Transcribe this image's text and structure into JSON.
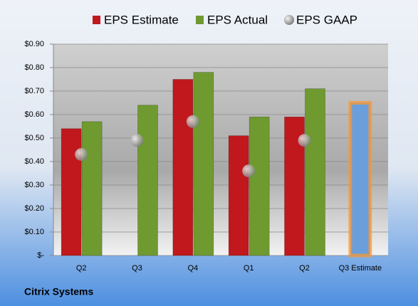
{
  "chart_data": {
    "type": "bar",
    "title": "Citrix Systems",
    "categories": [
      "Q2",
      "Q3",
      "Q4",
      "Q1",
      "Q2",
      "Q3 Estimate"
    ],
    "series": [
      {
        "name": "EPS Estimate",
        "color": "#c0181c",
        "values": [
          0.54,
          null,
          0.75,
          0.51,
          0.59,
          0.65
        ]
      },
      {
        "name": "EPS Actual",
        "color": "#6f9a2f",
        "values": [
          0.57,
          0.64,
          0.78,
          0.59,
          0.71,
          null
        ]
      },
      {
        "name": "EPS GAAP",
        "color": "#9a9a9a",
        "values": [
          0.43,
          0.49,
          0.57,
          0.36,
          0.49,
          null
        ]
      }
    ],
    "estimate_highlight_color": "#6b9fdc",
    "ylim": [
      0,
      0.9
    ],
    "yticks": [
      {
        "value": 0,
        "label": "$-"
      },
      {
        "value": 0.1,
        "label": "$0.10"
      },
      {
        "value": 0.2,
        "label": "$0.20"
      },
      {
        "value": 0.3,
        "label": "$0.30"
      },
      {
        "value": 0.4,
        "label": "$0.40"
      },
      {
        "value": 0.5,
        "label": "$0.50"
      },
      {
        "value": 0.6,
        "label": "$0.60"
      },
      {
        "value": 0.7,
        "label": "$0.70"
      },
      {
        "value": 0.8,
        "label": "$0.80"
      },
      {
        "value": 0.9,
        "label": "$0.90"
      }
    ],
    "grid": true
  }
}
